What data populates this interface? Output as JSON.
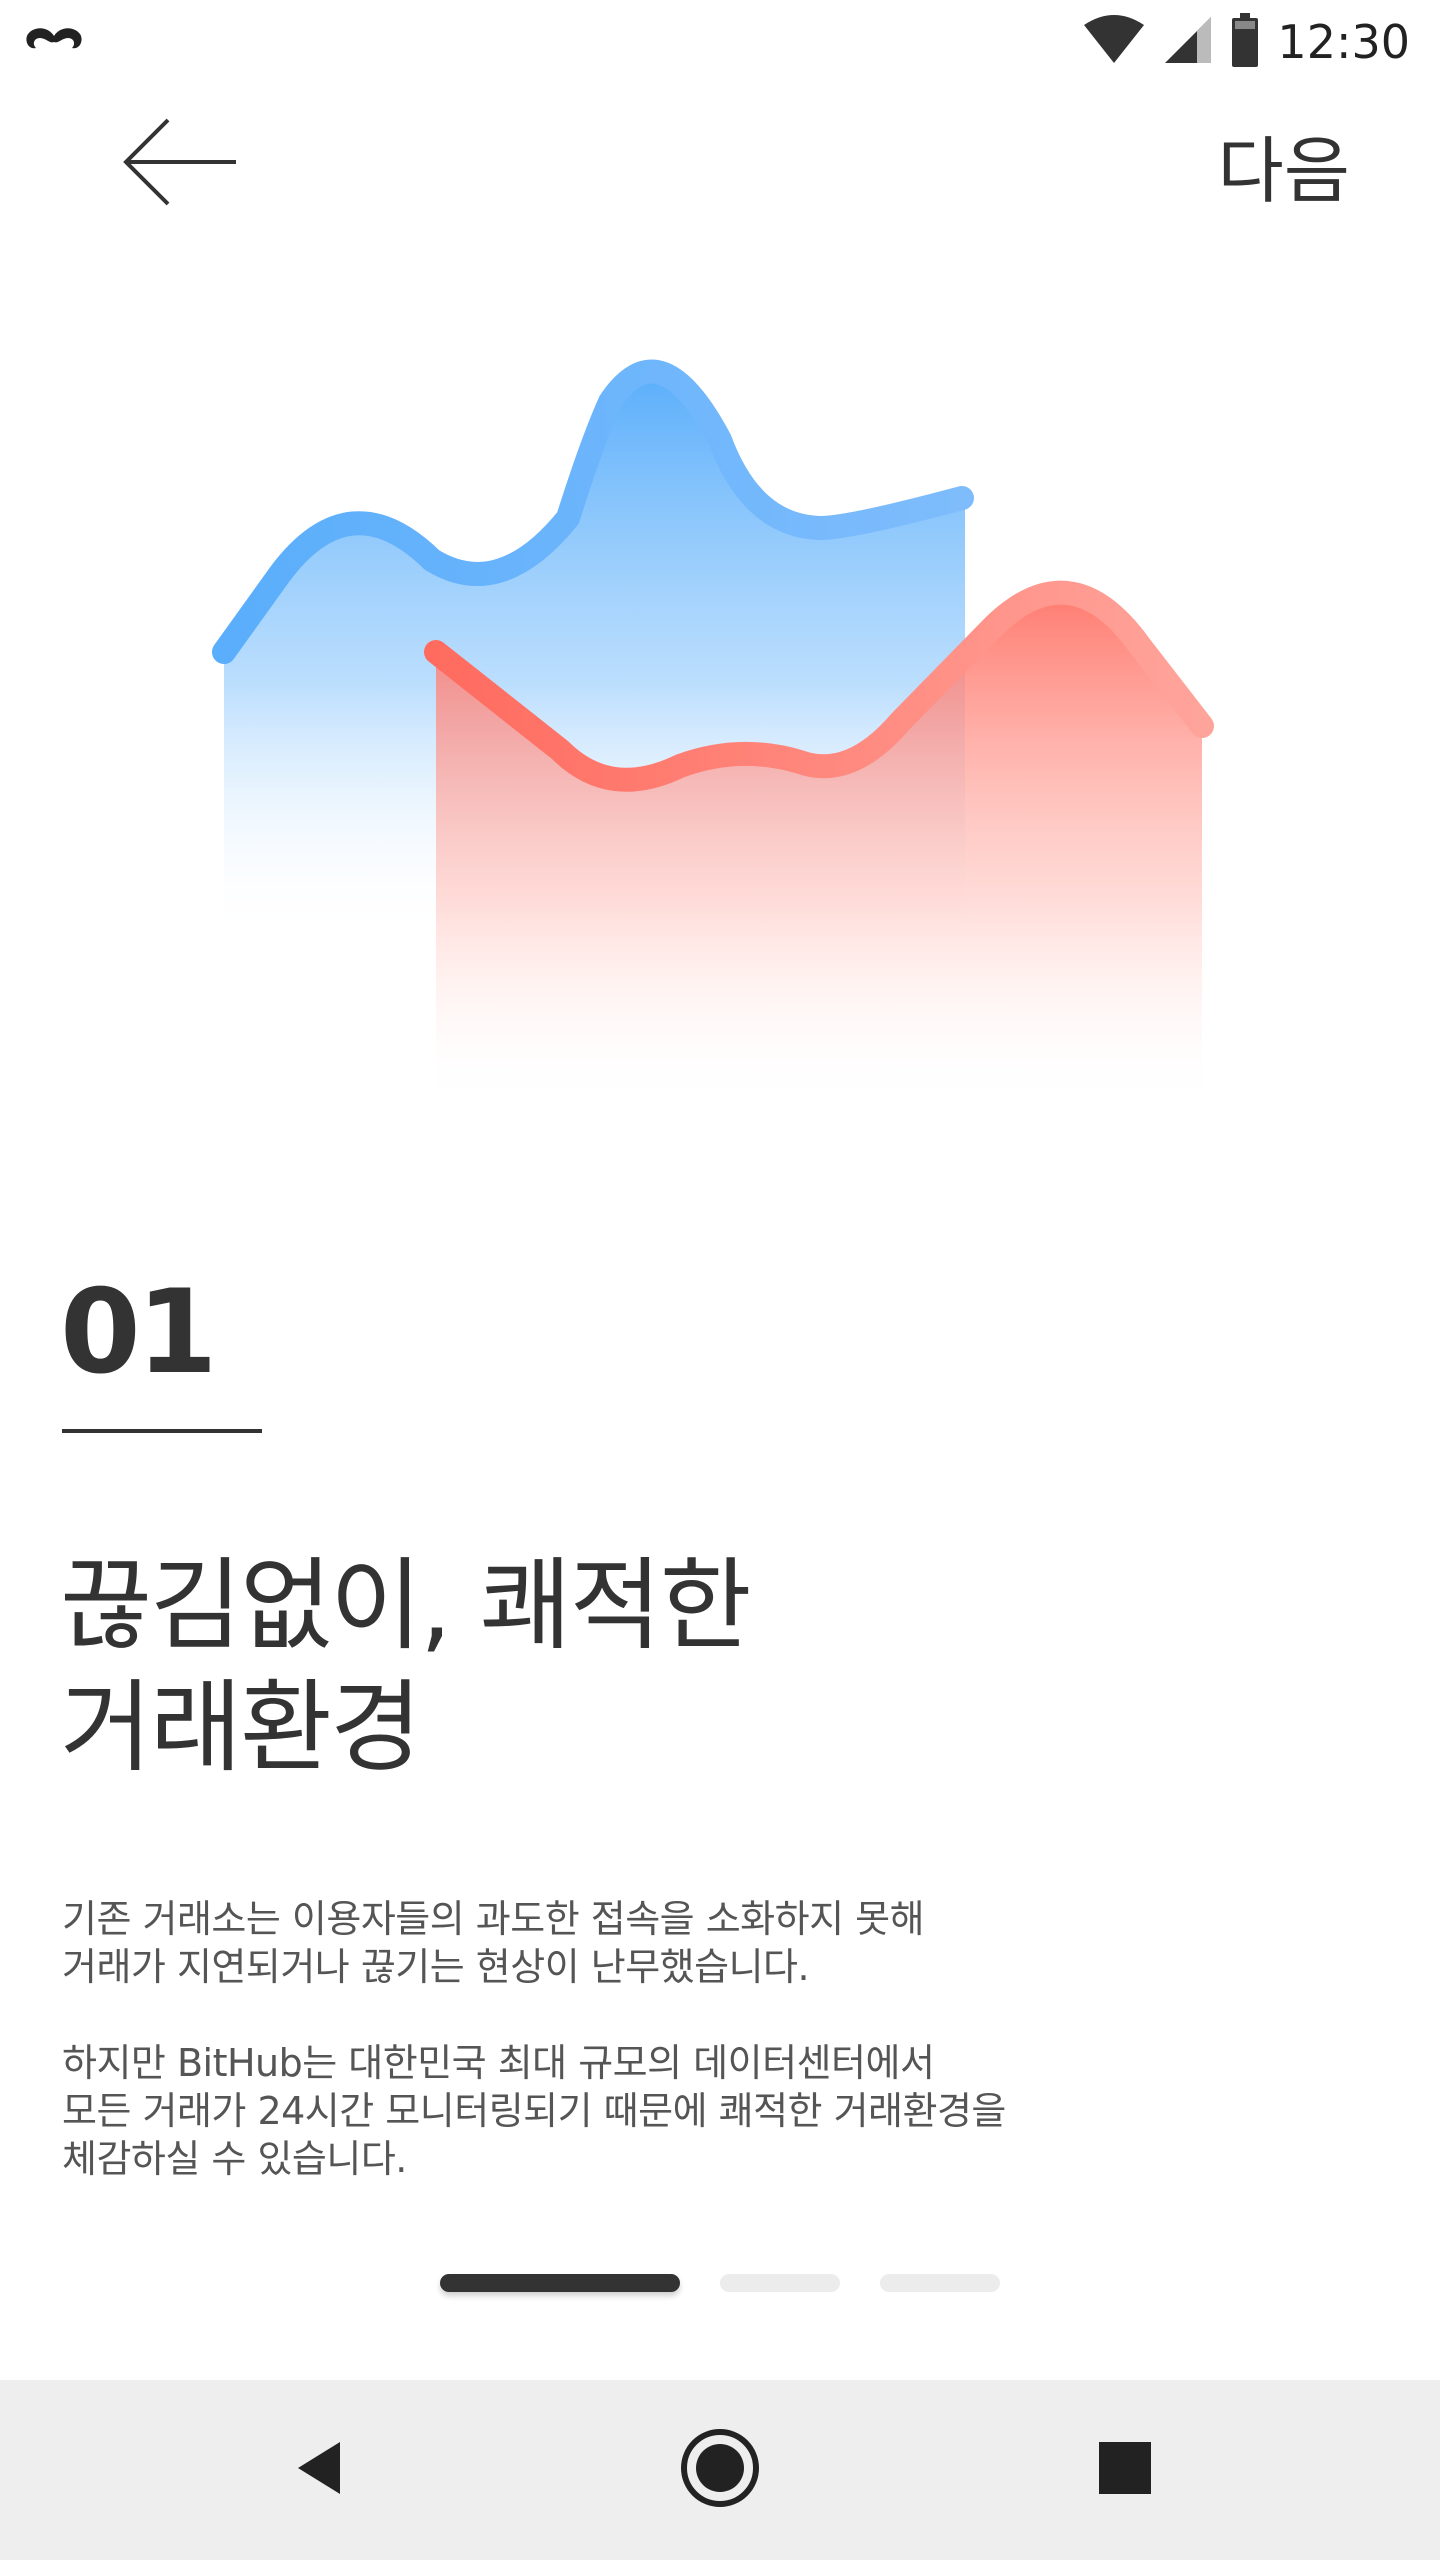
{
  "status_bar": {
    "time": "12:30",
    "icons": [
      "mustache-icon",
      "wifi-icon",
      "signal-icon",
      "battery-icon"
    ]
  },
  "top_bar": {
    "back_icon": "arrow-left-icon",
    "next_label": "다음"
  },
  "illustration": {
    "blue_color": "#5aaefb",
    "red_color": "#ff7468"
  },
  "step": {
    "number": "01"
  },
  "headline": {
    "line1": "끊김없이, 쾌적한",
    "line2": "거래환경"
  },
  "description": {
    "paragraph1": {
      "line1": "기존 거래소는 이용자들의 과도한 접속을 소화하지 못해",
      "line2": "거래가 지연되거나 끊기는 현상이 난무했습니다."
    },
    "paragraph2": {
      "line1": "하지만 BitHub는 대한민국 최대 규모의 데이터센터에서",
      "line2": "모든 거래가 24시간 모니터링되기 때문에 쾌적한 거래환경을",
      "line3": "체감하실 수 있습니다."
    }
  },
  "pager": {
    "total": 3,
    "active_index": 1,
    "active_color": "#333333",
    "inactive_color": "#ececec"
  },
  "nav_bar": {
    "back_icon": "triangle-back-icon",
    "home_icon": "circle-home-icon",
    "recent_icon": "square-recent-icon"
  }
}
